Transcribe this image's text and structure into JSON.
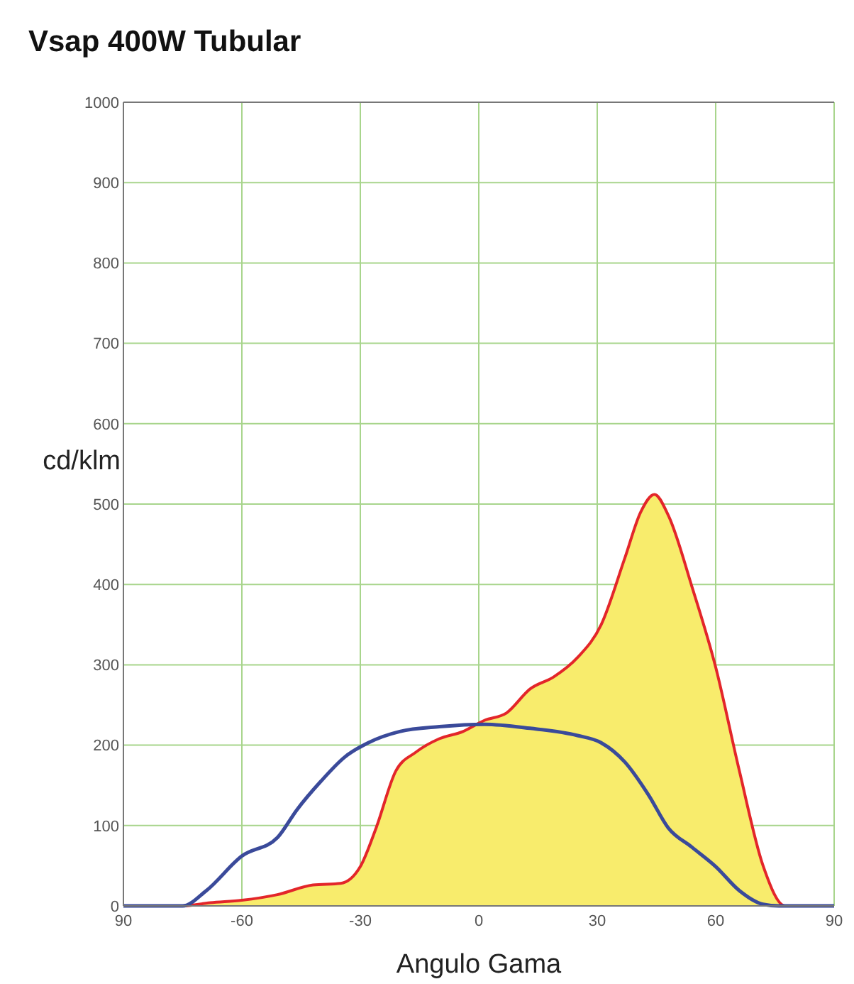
{
  "chart_data": {
    "type": "area",
    "title": "Vsap 400W Tubular",
    "xlabel": "Angulo Gama",
    "ylabel": "cd/klm",
    "xlim": [
      -90,
      90
    ],
    "xticks": [
      {
        "value": -90,
        "label": "90"
      },
      -60,
      -30,
      0,
      30,
      60,
      {
        "value": 90,
        "label": "90"
      }
    ],
    "ylim": [
      0,
      1000
    ],
    "yticks": [
      0,
      100,
      200,
      300,
      400,
      500,
      600,
      700,
      800,
      900,
      1000
    ],
    "grid": true,
    "series": [
      {
        "color": "#e3262a",
        "x": [
          -90,
          -75,
          -68,
          -60,
          -51,
          -42,
          -35,
          -30,
          -26,
          -21,
          -16,
          -10,
          -4,
          1.5,
          7,
          13,
          19,
          25,
          31,
          37,
          41,
          44.5,
          48,
          54,
          60,
          66,
          72,
          77.6,
          90
        ],
        "values": [
          0,
          0,
          4,
          7,
          14,
          26,
          28,
          49,
          97,
          168,
          191,
          208,
          217,
          231,
          240,
          270,
          285,
          309,
          350,
          433,
          490,
          512,
          486,
          397,
          297,
          168,
          50,
          0,
          0
        ]
      },
      {
        "type": "line",
        "color": "#3a4a9a",
        "x": [
          -90,
          -75,
          -69,
          -60,
          -51,
          -46,
          -40,
          -34,
          -28,
          -20,
          -10,
          1.5,
          13,
          25,
          31,
          37,
          43,
          48,
          54,
          60,
          66,
          72,
          76,
          90
        ],
        "values": [
          0,
          0,
          19,
          62,
          85,
          120,
          155,
          185,
          203,
          217,
          223,
          226,
          221,
          212,
          203,
          179,
          138,
          97,
          73,
          49,
          19,
          2,
          0,
          0
        ]
      }
    ]
  }
}
